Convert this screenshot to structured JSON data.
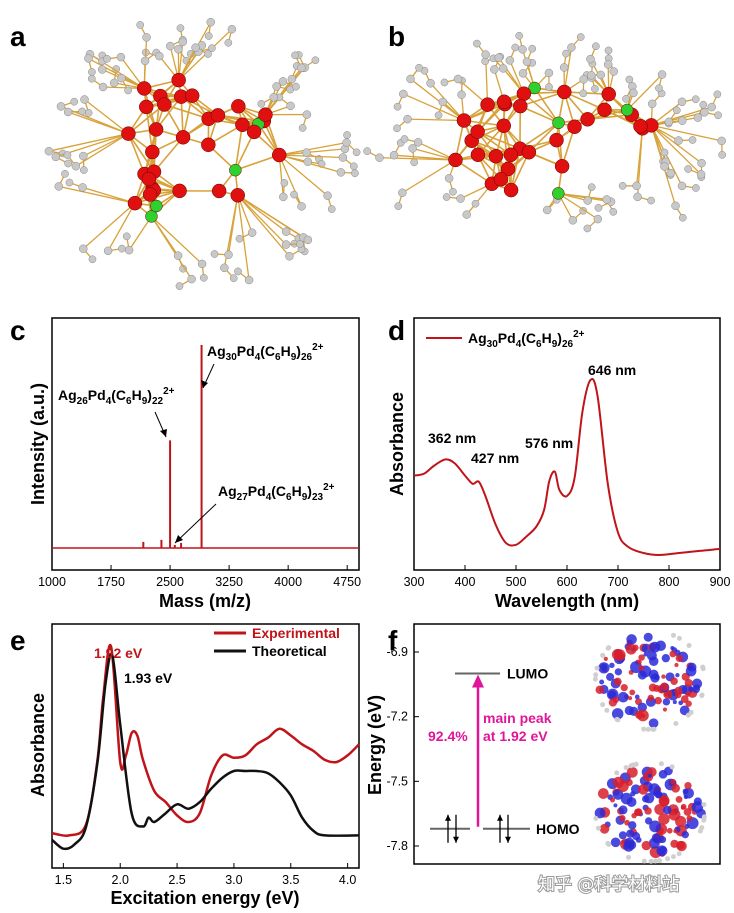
{
  "panels": {
    "a": "a",
    "b": "b",
    "c": "c",
    "d": "d",
    "e": "e",
    "f": "f"
  },
  "colors": {
    "red": "#c0141a",
    "black": "#111111",
    "magenta": "#e0159a",
    "ag_atom": "#e01010",
    "pd_atom": "#2fd12f",
    "c_atom": "#c8c8c8",
    "bond": "#d8a23a"
  },
  "watermark": "知乎 @科学材料站",
  "chart_data": [
    {
      "id": "c",
      "type": "line",
      "xlabel": "Mass (m/z)",
      "ylabel": "Intensity (a.u.)",
      "xlim": [
        1000,
        4900
      ],
      "xticks": [
        1000,
        1750,
        2500,
        3250,
        4000,
        4750
      ],
      "series": [
        {
          "color": "#c0141a",
          "peaks": [
            [
              2160,
              0.03
            ],
            [
              2390,
              0.04
            ],
            [
              2500,
              0.53
            ],
            [
              2560,
              0.015
            ],
            [
              2640,
              0.025
            ],
            [
              2900,
              1.0
            ]
          ]
        }
      ],
      "annotations": [
        {
          "base": "Ag",
          "n1": "30",
          "mid": "Pd",
          "n2": "4",
          "lig": "(C",
          "s1": "6",
          "h": "H",
          "s2": "9",
          "close": ")",
          "s3": "26",
          "charge": "2+"
        },
        {
          "base": "Ag",
          "n1": "26",
          "mid": "Pd",
          "n2": "4",
          "lig": "(C",
          "s1": "6",
          "h": "H",
          "s2": "9",
          "close": ")",
          "s3": "22",
          "charge": "2+"
        },
        {
          "base": "Ag",
          "n1": "27",
          "mid": "Pd",
          "n2": "4",
          "lig": "(C",
          "s1": "6",
          "h": "H",
          "s2": "9",
          "close": ")",
          "s3": "23",
          "charge": "2+"
        }
      ]
    },
    {
      "id": "d",
      "type": "line",
      "xlabel": "Wavelength (nm)",
      "ylabel": "Absorbance",
      "xlim": [
        300,
        900
      ],
      "ylim": [
        0,
        1
      ],
      "xticks": [
        300,
        400,
        500,
        600,
        700,
        800,
        900
      ],
      "legend": {
        "base": "Ag",
        "n1": "30",
        "mid": "Pd",
        "n2": "4",
        "lig": "(C",
        "s1": "6",
        "h": "H",
        "s2": "9",
        "close": ")",
        "s3": "26",
        "charge": "2+"
      },
      "peak_labels": [
        "362 nm",
        "427 nm",
        "576 nm",
        "646 nm"
      ],
      "series": [
        {
          "color": "#c0141a",
          "x": [
            300,
            320,
            340,
            362,
            380,
            400,
            415,
            427,
            440,
            460,
            480,
            500,
            520,
            540,
            555,
            565,
            576,
            585,
            600,
            615,
            630,
            646,
            660,
            680,
            700,
            720,
            750,
            780,
            820,
            860,
            900
          ],
          "y": [
            0.39,
            0.4,
            0.44,
            0.47,
            0.45,
            0.39,
            0.35,
            0.36,
            0.29,
            0.15,
            0.06,
            0.05,
            0.09,
            0.14,
            0.22,
            0.36,
            0.41,
            0.32,
            0.29,
            0.38,
            0.7,
            0.86,
            0.78,
            0.35,
            0.11,
            0.04,
            0.01,
            0.0,
            0.01,
            0.02,
            0.03
          ]
        }
      ]
    },
    {
      "id": "e",
      "type": "line",
      "xlabel": "Excitation energy (eV)",
      "ylabel": "Absorbance",
      "xlim": [
        1.4,
        4.1
      ],
      "ylim": [
        0,
        1
      ],
      "xticks": [
        1.5,
        2.0,
        2.5,
        3.0,
        3.5,
        4.0
      ],
      "xtick_labels": [
        "1.5",
        "2.0",
        "2.5",
        "3.0",
        "3.5",
        "4.0"
      ],
      "peak_labels": [
        "1.92 eV",
        "1.93 eV"
      ],
      "series": [
        {
          "name": "Experimental",
          "color": "#c0141a",
          "x": [
            1.4,
            1.55,
            1.7,
            1.8,
            1.85,
            1.92,
            2.0,
            2.05,
            2.1,
            2.15,
            2.2,
            2.3,
            2.4,
            2.5,
            2.6,
            2.7,
            2.8,
            2.9,
            3.0,
            3.1,
            3.2,
            3.3,
            3.4,
            3.5,
            3.6,
            3.7,
            3.8,
            3.9,
            4.0,
            4.1
          ],
          "y": [
            0.13,
            0.12,
            0.17,
            0.46,
            0.74,
            0.97,
            0.45,
            0.48,
            0.58,
            0.57,
            0.46,
            0.32,
            0.27,
            0.21,
            0.18,
            0.22,
            0.39,
            0.48,
            0.47,
            0.48,
            0.53,
            0.56,
            0.6,
            0.57,
            0.53,
            0.5,
            0.46,
            0.45,
            0.48,
            0.53
          ]
        },
        {
          "name": "Theoretical",
          "color": "#111111",
          "x": [
            1.4,
            1.5,
            1.6,
            1.7,
            1.8,
            1.87,
            1.93,
            2.0,
            2.1,
            2.2,
            2.25,
            2.3,
            2.4,
            2.5,
            2.6,
            2.7,
            2.8,
            2.9,
            3.0,
            3.1,
            3.2,
            3.3,
            3.4,
            3.5,
            3.6,
            3.7,
            3.8,
            4.1
          ],
          "y": [
            0.1,
            0.06,
            0.08,
            0.16,
            0.45,
            0.8,
            0.93,
            0.62,
            0.22,
            0.16,
            0.2,
            0.18,
            0.22,
            0.26,
            0.24,
            0.27,
            0.33,
            0.38,
            0.41,
            0.41,
            0.41,
            0.4,
            0.36,
            0.3,
            0.2,
            0.14,
            0.12,
            0.12
          ]
        }
      ]
    },
    {
      "id": "f",
      "type": "diagram",
      "ylabel": "Energy (eV)",
      "ylim": [
        -7.85,
        -6.85
      ],
      "yticks": [
        -6.9,
        -7.2,
        -7.5,
        -7.8
      ],
      "levels": [
        {
          "label": "LUMO",
          "energy": -7.0
        },
        {
          "label": "HOMO",
          "energy": -7.72
        }
      ],
      "transition": {
        "percent": "92.4%",
        "line1": "main peak",
        "line2": "at 1.92 eV"
      }
    }
  ]
}
